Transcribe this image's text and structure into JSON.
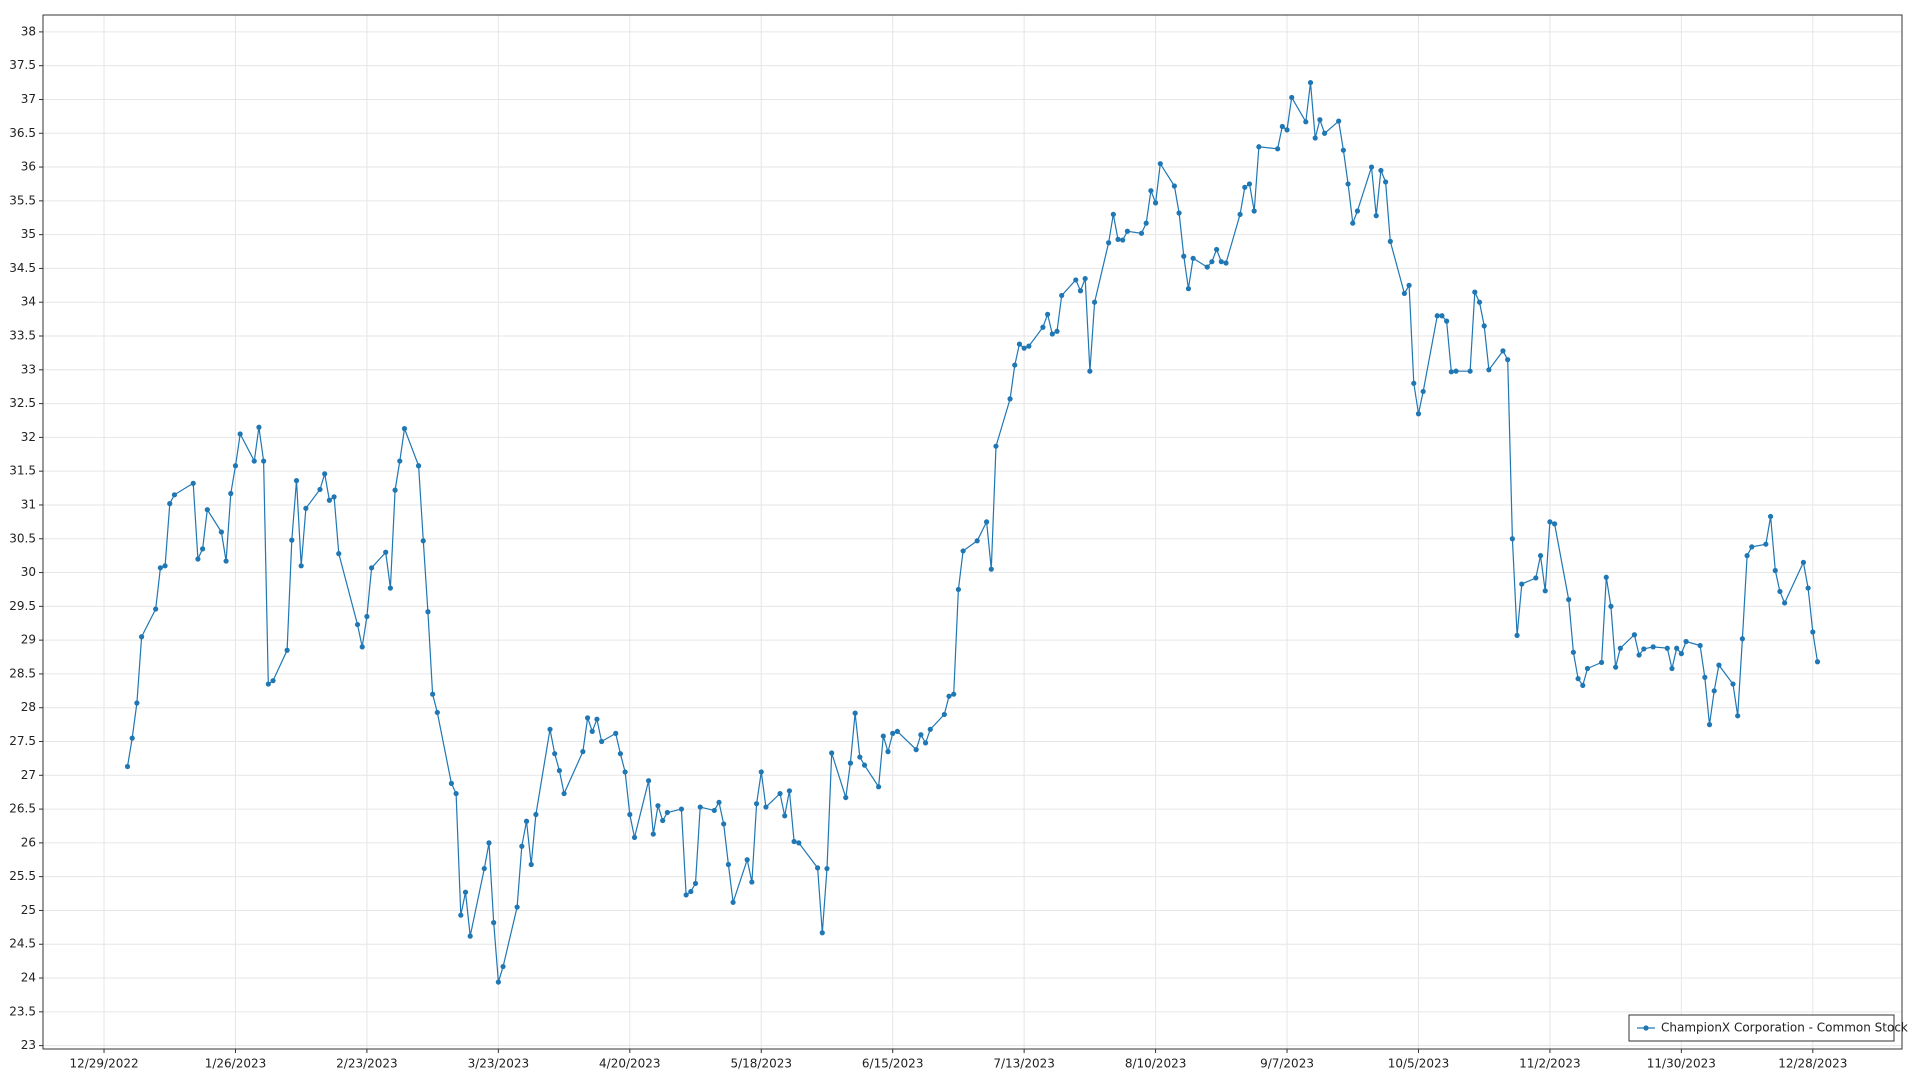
{
  "chart_data": {
    "type": "line",
    "color": "#1f77b4",
    "grid": true,
    "legend": "lower right",
    "xlim": [
      "12/16/2022",
      "1/16/2024"
    ],
    "xticks": [
      "12/29/2022",
      "1/26/2023",
      "2/23/2023",
      "3/23/2023",
      "4/20/2023",
      "5/18/2023",
      "6/15/2023",
      "7/13/2023",
      "8/10/2023",
      "9/7/2023",
      "10/5/2023",
      "11/2/2023",
      "11/30/2023",
      "12/28/2023"
    ],
    "ylim": [
      22.95,
      38.25
    ],
    "yticks": [
      23,
      23.5,
      24,
      24.5,
      25,
      25.5,
      26,
      26.5,
      27,
      27.5,
      28,
      28.5,
      29,
      29.5,
      30,
      30.5,
      31,
      31.5,
      32,
      32.5,
      33,
      33.5,
      34,
      34.5,
      35,
      35.5,
      36,
      36.5,
      37,
      37.5,
      38
    ],
    "x": [
      "1/3/2023",
      "1/4/2023",
      "1/5/2023",
      "1/6/2023",
      "1/9/2023",
      "1/10/2023",
      "1/11/2023",
      "1/12/2023",
      "1/13/2023",
      "1/17/2023",
      "1/18/2023",
      "1/19/2023",
      "1/20/2023",
      "1/23/2023",
      "1/24/2023",
      "1/25/2023",
      "1/26/2023",
      "1/27/2023",
      "1/30/2023",
      "1/31/2023",
      "2/1/2023",
      "2/2/2023",
      "2/3/2023",
      "2/6/2023",
      "2/7/2023",
      "2/8/2023",
      "2/9/2023",
      "2/10/2023",
      "2/13/2023",
      "2/14/2023",
      "2/15/2023",
      "2/16/2023",
      "2/17/2023",
      "2/21/2023",
      "2/22/2023",
      "2/23/2023",
      "2/24/2023",
      "2/27/2023",
      "2/28/2023",
      "3/1/2023",
      "3/2/2023",
      "3/3/2023",
      "3/6/2023",
      "3/7/2023",
      "3/8/2023",
      "3/9/2023",
      "3/10/2023",
      "3/13/2023",
      "3/14/2023",
      "3/15/2023",
      "3/16/2023",
      "3/17/2023",
      "3/20/2023",
      "3/21/2023",
      "3/22/2023",
      "3/23/2023",
      "3/24/2023",
      "3/27/2023",
      "3/28/2023",
      "3/29/2023",
      "3/30/2023",
      "3/31/2023",
      "4/3/2023",
      "4/4/2023",
      "4/5/2023",
      "4/6/2023",
      "4/10/2023",
      "4/11/2023",
      "4/12/2023",
      "4/13/2023",
      "4/14/2023",
      "4/17/2023",
      "4/18/2023",
      "4/19/2023",
      "4/20/2023",
      "4/21/2023",
      "4/24/2023",
      "4/25/2023",
      "4/26/2023",
      "4/27/2023",
      "4/28/2023",
      "5/1/2023",
      "5/2/2023",
      "5/3/2023",
      "5/4/2023",
      "5/5/2023",
      "5/8/2023",
      "5/9/2023",
      "5/10/2023",
      "5/11/2023",
      "5/12/2023",
      "5/15/2023",
      "5/16/2023",
      "5/17/2023",
      "5/18/2023",
      "5/19/2023",
      "5/22/2023",
      "5/23/2023",
      "5/24/2023",
      "5/25/2023",
      "5/26/2023",
      "5/30/2023",
      "5/31/2023",
      "6/1/2023",
      "6/2/2023",
      "6/5/2023",
      "6/6/2023",
      "6/7/2023",
      "6/8/2023",
      "6/9/2023",
      "6/12/2023",
      "6/13/2023",
      "6/14/2023",
      "6/15/2023",
      "6/16/2023",
      "6/20/2023",
      "6/21/2023",
      "6/22/2023",
      "6/23/2023",
      "6/26/2023",
      "6/27/2023",
      "6/28/2023",
      "6/29/2023",
      "6/30/2023",
      "7/3/2023",
      "7/5/2023",
      "7/6/2023",
      "7/7/2023",
      "7/10/2023",
      "7/11/2023",
      "7/12/2023",
      "7/13/2023",
      "7/14/2023",
      "7/17/2023",
      "7/18/2023",
      "7/19/2023",
      "7/20/2023",
      "7/21/2023",
      "7/24/2023",
      "7/25/2023",
      "7/26/2023",
      "7/27/2023",
      "7/28/2023",
      "7/31/2023",
      "8/1/2023",
      "8/2/2023",
      "8/3/2023",
      "8/4/2023",
      "8/7/2023",
      "8/8/2023",
      "8/9/2023",
      "8/10/2023",
      "8/11/2023",
      "8/14/2023",
      "8/15/2023",
      "8/16/2023",
      "8/17/2023",
      "8/18/2023",
      "8/21/2023",
      "8/22/2023",
      "8/23/2023",
      "8/24/2023",
      "8/25/2023",
      "8/28/2023",
      "8/29/2023",
      "8/30/2023",
      "8/31/2023",
      "9/1/2023",
      "9/5/2023",
      "9/6/2023",
      "9/7/2023",
      "9/8/2023",
      "9/11/2023",
      "9/12/2023",
      "9/13/2023",
      "9/14/2023",
      "9/15/2023",
      "9/18/2023",
      "9/19/2023",
      "9/20/2023",
      "9/21/2023",
      "9/22/2023",
      "9/25/2023",
      "9/26/2023",
      "9/27/2023",
      "9/28/2023",
      "9/29/2023",
      "10/2/2023",
      "10/3/2023",
      "10/4/2023",
      "10/5/2023",
      "10/6/2023",
      "10/9/2023",
      "10/10/2023",
      "10/11/2023",
      "10/12/2023",
      "10/13/2023",
      "10/16/2023",
      "10/17/2023",
      "10/18/2023",
      "10/19/2023",
      "10/20/2023",
      "10/23/2023",
      "10/24/2023",
      "10/25/2023",
      "10/26/2023",
      "10/27/2023",
      "10/30/2023",
      "10/31/2023",
      "11/1/2023",
      "11/2/2023",
      "11/3/2023",
      "11/6/2023",
      "11/7/2023",
      "11/8/2023",
      "11/9/2023",
      "11/10/2023",
      "11/13/2023",
      "11/14/2023",
      "11/15/2023",
      "11/16/2023",
      "11/17/2023",
      "11/20/2023",
      "11/21/2023",
      "11/22/2023",
      "11/24/2023",
      "11/27/2023",
      "11/28/2023",
      "11/29/2023",
      "11/30/2023",
      "12/1/2023",
      "12/4/2023",
      "12/5/2023",
      "12/6/2023",
      "12/7/2023",
      "12/8/2023",
      "12/11/2023",
      "12/12/2023",
      "12/13/2023",
      "12/14/2023",
      "12/15/2023",
      "12/18/2023",
      "12/19/2023",
      "12/20/2023",
      "12/21/2023",
      "12/22/2023",
      "12/26/2023",
      "12/27/2023",
      "12/28/2023",
      "12/29/2023"
    ],
    "series": [
      {
        "name": "ChampionX Corporation - Common Stock",
        "color": "#1f77b4",
        "values": [
          27.13,
          27.55,
          28.07,
          29.05,
          29.46,
          30.07,
          30.1,
          31.02,
          31.15,
          31.32,
          30.2,
          30.35,
          30.93,
          30.6,
          30.17,
          31.17,
          31.58,
          32.05,
          31.65,
          32.15,
          31.65,
          28.35,
          28.4,
          28.85,
          30.48,
          31.36,
          30.1,
          30.95,
          31.23,
          31.46,
          31.07,
          31.12,
          30.28,
          29.23,
          28.9,
          29.35,
          30.07,
          30.3,
          29.77,
          31.22,
          31.65,
          32.13,
          31.58,
          30.47,
          29.42,
          28.2,
          27.93,
          26.88,
          26.73,
          24.93,
          25.27,
          24.62,
          25.62,
          26.0,
          24.82,
          23.94,
          24.17,
          25.05,
          25.95,
          26.32,
          25.68,
          26.42,
          27.68,
          27.32,
          27.07,
          26.73,
          27.35,
          27.85,
          27.65,
          27.83,
          27.5,
          27.62,
          27.32,
          27.05,
          26.42,
          26.08,
          26.92,
          26.13,
          26.55,
          26.33,
          26.45,
          26.5,
          25.23,
          25.28,
          25.4,
          26.53,
          26.48,
          26.6,
          26.28,
          25.68,
          25.12,
          25.75,
          25.42,
          26.58,
          27.05,
          26.53,
          26.73,
          26.4,
          26.77,
          26.02,
          26.0,
          25.63,
          24.67,
          25.62,
          27.33,
          26.67,
          27.18,
          27.92,
          27.27,
          27.15,
          26.83,
          27.58,
          27.35,
          27.62,
          27.65,
          27.38,
          27.6,
          27.48,
          27.68,
          27.9,
          28.17,
          28.2,
          29.75,
          30.32,
          30.47,
          30.75,
          30.05,
          31.87,
          32.57,
          33.07,
          33.38,
          33.32,
          33.35,
          33.63,
          33.82,
          33.53,
          33.57,
          34.1,
          34.33,
          34.17,
          34.35,
          32.98,
          34.0,
          34.88,
          35.3,
          34.93,
          34.92,
          35.05,
          35.02,
          35.17,
          35.65,
          35.47,
          36.05,
          35.72,
          35.32,
          34.68,
          34.2,
          34.65,
          34.52,
          34.6,
          34.78,
          34.6,
          34.58,
          35.3,
          35.7,
          35.75,
          35.35,
          36.3,
          36.27,
          36.6,
          36.55,
          37.03,
          36.67,
          37.25,
          36.43,
          36.7,
          36.5,
          36.68,
          36.25,
          35.75,
          35.17,
          35.35,
          36.0,
          35.28,
          35.95,
          35.78,
          34.9,
          34.13,
          34.25,
          32.8,
          32.35,
          32.68,
          33.8,
          33.8,
          33.72,
          32.97,
          32.98,
          32.98,
          34.15,
          34.0,
          33.65,
          33.0,
          33.28,
          33.15,
          30.5,
          29.07,
          29.83,
          29.92,
          30.25,
          29.73,
          30.75,
          30.72,
          29.6,
          28.82,
          28.43,
          28.33,
          28.58,
          28.67,
          29.93,
          29.5,
          28.6,
          28.88,
          29.08,
          28.78,
          28.87,
          28.9,
          28.88,
          28.58,
          28.88,
          28.8,
          28.98,
          28.92,
          28.45,
          27.75,
          28.25,
          28.63,
          28.35,
          27.88,
          29.02,
          30.25,
          30.38,
          30.42,
          30.83,
          30.03,
          29.72,
          29.55,
          30.15,
          29.77,
          29.12,
          28.68
        ]
      }
    ]
  }
}
